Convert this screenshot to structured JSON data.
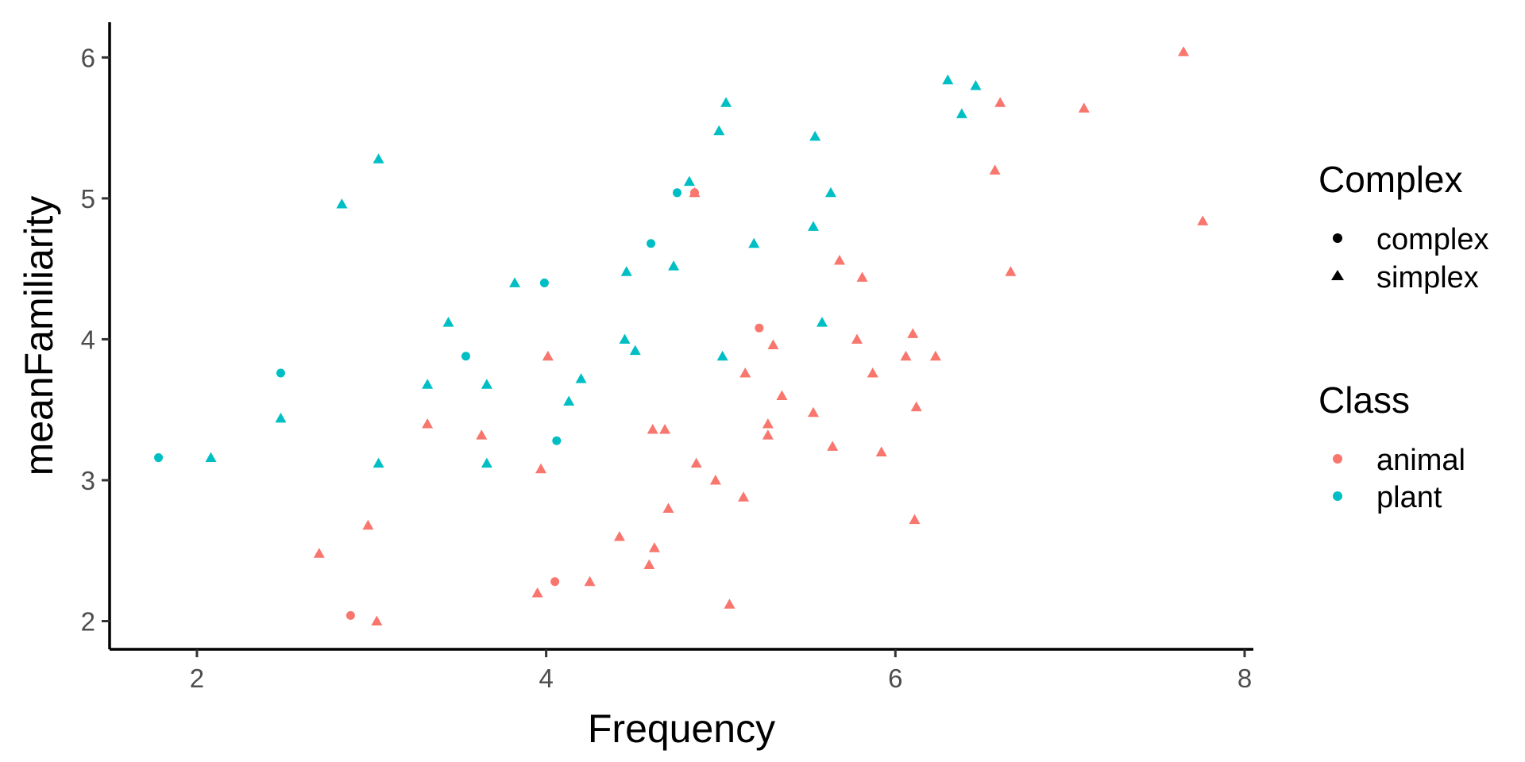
{
  "chart_data": {
    "type": "scatter",
    "title": "",
    "xlabel": "Frequency",
    "ylabel": "meanFamiliarity",
    "xlim": [
      1.5,
      8.05
    ],
    "ylim": [
      1.8,
      6.25
    ],
    "xticks": [
      2,
      4,
      6,
      8
    ],
    "yticks": [
      2,
      3,
      4,
      5,
      6
    ],
    "grid": false,
    "legend_placement": "right",
    "legends": {
      "shape": {
        "title": "Complex",
        "entries": [
          {
            "label": "complex",
            "shape": "circle"
          },
          {
            "label": "simplex",
            "shape": "triangle"
          }
        ]
      },
      "color": {
        "title": "Class",
        "entries": [
          {
            "label": "animal",
            "color": "#F8766D"
          },
          {
            "label": "plant",
            "color": "#00BFC4"
          }
        ]
      }
    },
    "series": [
      {
        "class": "animal",
        "complex": "complex",
        "points": [
          [
            2.88,
            2.04
          ],
          [
            4.05,
            2.28
          ],
          [
            5.22,
            4.08
          ],
          [
            4.85,
            5.04
          ]
        ]
      },
      {
        "class": "animal",
        "complex": "simplex",
        "points": [
          [
            2.7,
            2.48
          ],
          [
            3.03,
            2.0
          ],
          [
            2.98,
            2.68
          ],
          [
            3.32,
            3.4
          ],
          [
            3.63,
            3.32
          ],
          [
            3.95,
            2.2
          ],
          [
            3.97,
            3.08
          ],
          [
            4.01,
            3.88
          ],
          [
            4.25,
            2.28
          ],
          [
            4.42,
            2.6
          ],
          [
            4.59,
            2.4
          ],
          [
            4.61,
            3.36
          ],
          [
            4.62,
            2.52
          ],
          [
            4.68,
            3.36
          ],
          [
            4.7,
            2.8
          ],
          [
            4.86,
            3.12
          ],
          [
            4.97,
            3.0
          ],
          [
            5.05,
            2.12
          ],
          [
            5.13,
            2.88
          ],
          [
            5.14,
            3.76
          ],
          [
            5.27,
            3.32
          ],
          [
            5.27,
            3.4
          ],
          [
            5.3,
            3.96
          ],
          [
            5.35,
            3.6
          ],
          [
            5.53,
            3.48
          ],
          [
            5.64,
            3.24
          ],
          [
            5.68,
            4.56
          ],
          [
            5.78,
            4.0
          ],
          [
            5.81,
            4.44
          ],
          [
            5.87,
            3.76
          ],
          [
            5.92,
            3.2
          ],
          [
            6.06,
            3.88
          ],
          [
            6.1,
            4.04
          ],
          [
            6.11,
            2.72
          ],
          [
            6.12,
            3.52
          ],
          [
            6.23,
            3.88
          ],
          [
            6.57,
            5.2
          ],
          [
            6.6,
            5.68
          ],
          [
            6.66,
            4.48
          ],
          [
            7.08,
            5.64
          ],
          [
            7.65,
            6.04
          ],
          [
            7.76,
            4.84
          ],
          [
            4.85,
            5.04
          ]
        ]
      },
      {
        "class": "plant",
        "complex": "complex",
        "points": [
          [
            1.78,
            3.16
          ],
          [
            2.48,
            3.76
          ],
          [
            3.54,
            3.88
          ],
          [
            3.99,
            4.4
          ],
          [
            4.06,
            3.28
          ],
          [
            4.6,
            4.68
          ],
          [
            4.75,
            5.04
          ]
        ]
      },
      {
        "class": "plant",
        "complex": "simplex",
        "points": [
          [
            2.08,
            3.16
          ],
          [
            2.48,
            3.44
          ],
          [
            2.83,
            4.96
          ],
          [
            3.04,
            5.28
          ],
          [
            3.04,
            3.12
          ],
          [
            3.32,
            3.68
          ],
          [
            3.44,
            4.12
          ],
          [
            3.66,
            3.68
          ],
          [
            3.66,
            3.12
          ],
          [
            3.82,
            4.4
          ],
          [
            4.13,
            3.56
          ],
          [
            4.2,
            3.72
          ],
          [
            4.45,
            4.0
          ],
          [
            4.46,
            4.48
          ],
          [
            4.51,
            3.92
          ],
          [
            4.73,
            4.52
          ],
          [
            4.82,
            5.12
          ],
          [
            4.99,
            5.48
          ],
          [
            5.01,
            3.88
          ],
          [
            5.03,
            5.68
          ],
          [
            5.19,
            4.68
          ],
          [
            5.53,
            4.8
          ],
          [
            5.54,
            5.44
          ],
          [
            5.58,
            4.12
          ],
          [
            5.63,
            5.04
          ],
          [
            6.3,
            5.84
          ],
          [
            6.38,
            5.6
          ],
          [
            6.46,
            5.8
          ]
        ]
      }
    ]
  }
}
